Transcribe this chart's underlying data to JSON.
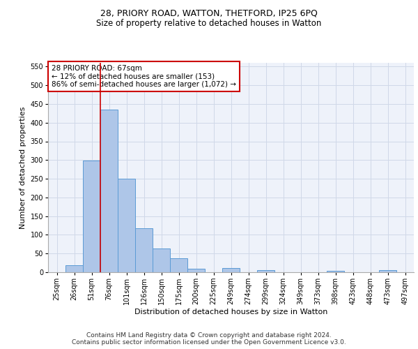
{
  "title_line1": "28, PRIORY ROAD, WATTON, THETFORD, IP25 6PQ",
  "title_line2": "Size of property relative to detached houses in Watton",
  "xlabel": "Distribution of detached houses by size in Watton",
  "ylabel": "Number of detached properties",
  "tick_labels": [
    "25sqm",
    "26sqm",
    "51sqm",
    "76sqm",
    "101sqm",
    "126sqm",
    "150sqm",
    "175sqm",
    "200sqm",
    "225sqm",
    "249sqm",
    "274sqm",
    "299sqm",
    "324sqm",
    "349sqm",
    "373sqm",
    "398sqm",
    "423sqm",
    "448sqm",
    "473sqm",
    "497sqm"
  ],
  "values": [
    0,
    18,
    298,
    435,
    250,
    118,
    63,
    37,
    10,
    0,
    11,
    0,
    5,
    0,
    0,
    0,
    4,
    0,
    0,
    5,
    0
  ],
  "bar_color": "#aec6e8",
  "bar_edge_color": "#5b9bd5",
  "grid_color": "#d0d8e8",
  "background_color": "#eef2fa",
  "annotation_text": "28 PRIORY ROAD: 67sqm\n← 12% of detached houses are smaller (153)\n86% of semi-detached houses are larger (1,072) →",
  "annotation_box_color": "#ffffff",
  "annotation_border_color": "#cc0000",
  "vline_x": 2.5,
  "vline_color": "#cc0000",
  "ylim": [
    0,
    560
  ],
  "yticks": [
    0,
    50,
    100,
    150,
    200,
    250,
    300,
    350,
    400,
    450,
    500,
    550
  ],
  "footer_line1": "Contains HM Land Registry data © Crown copyright and database right 2024.",
  "footer_line2": "Contains public sector information licensed under the Open Government Licence v3.0.",
  "title_fontsize": 9,
  "subtitle_fontsize": 8.5,
  "axis_label_fontsize": 8,
  "tick_fontsize": 7,
  "annotation_fontsize": 7.5,
  "footer_fontsize": 6.5
}
